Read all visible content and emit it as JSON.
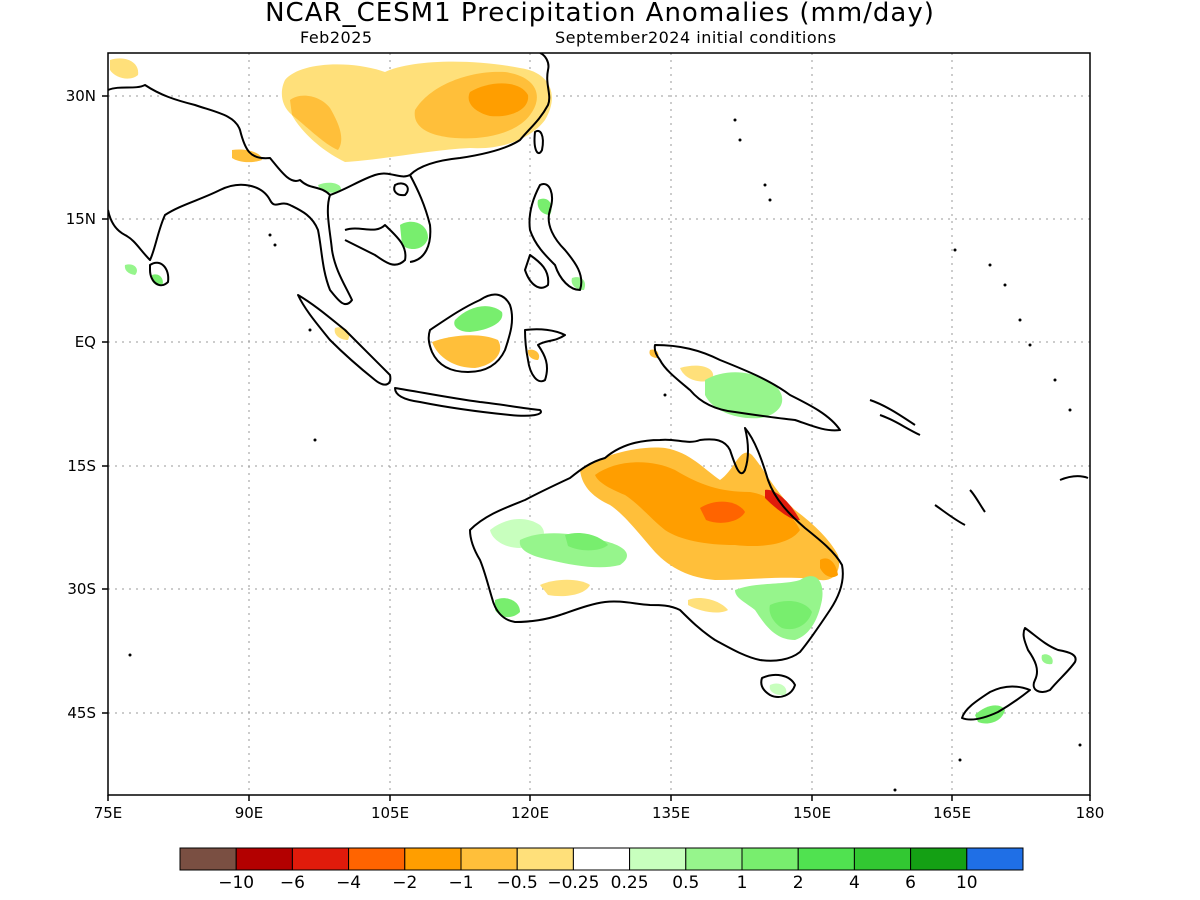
{
  "title": "NCAR_CESM1 Precipitation Anomalies (mm/day)",
  "subtitle_left": "Feb2025",
  "subtitle_right": "September2024 initial conditions",
  "lat_labels": [
    "30N",
    "15N",
    "EQ",
    "15S",
    "30S",
    "45S"
  ],
  "lon_labels": [
    "75E",
    "90E",
    "105E",
    "120E",
    "135E",
    "150E",
    "165E",
    "180"
  ],
  "colorbar": {
    "colors": [
      "#7a4f42",
      "#b30000",
      "#e01b0b",
      "#ff6400",
      "#ff9e00",
      "#ffbf3a",
      "#ffe07a",
      "#ffffff",
      "#c8ffbe",
      "#96f58c",
      "#78ee6e",
      "#50e250",
      "#32c832",
      "#14a014",
      "#1f6fe6"
    ],
    "labels": [
      "-10",
      "-6",
      "-4",
      "-2",
      "-1",
      "-0.5",
      "-0.25",
      "0.25",
      "0.5",
      "1",
      "2",
      "4",
      "6",
      "10"
    ]
  }
}
